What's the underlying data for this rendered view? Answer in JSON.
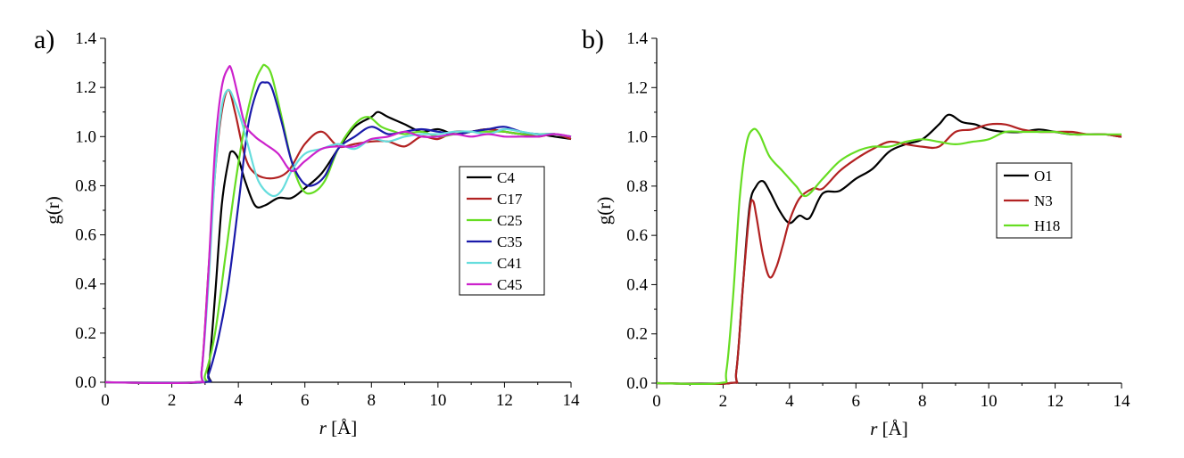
{
  "chart_data": [
    {
      "panel": "a)",
      "type": "line",
      "xlabel_italic": "r",
      "xlabel_rest": " [Å]",
      "ylabel": "g(r)",
      "xlim": [
        0,
        14
      ],
      "ylim": [
        0,
        1.4
      ],
      "xticks": [
        "0",
        "2",
        "4",
        "6",
        "8",
        "10",
        "12",
        "14"
      ],
      "yticks": [
        "0.0",
        "0.2",
        "0.4",
        "0.6",
        "0.8",
        "1.0",
        "1.2",
        "1.4"
      ],
      "grid": false,
      "legend_position": "right",
      "series": [
        {
          "name": "C4",
          "color": "#000000",
          "x": [
            0,
            2.9,
            3.1,
            3.3,
            3.5,
            3.7,
            3.8,
            4.0,
            4.2,
            4.5,
            4.8,
            5.2,
            5.6,
            6.0,
            6.5,
            7.0,
            7.5,
            8.0,
            8.2,
            8.5,
            9.0,
            9.5,
            10.0,
            10.5,
            11.0,
            11.5,
            12.0,
            12.5,
            13.0,
            13.5,
            14.0
          ],
          "y": [
            0,
            0,
            0.05,
            0.35,
            0.72,
            0.9,
            0.94,
            0.91,
            0.82,
            0.72,
            0.72,
            0.75,
            0.75,
            0.79,
            0.85,
            0.95,
            1.04,
            1.08,
            1.1,
            1.08,
            1.05,
            1.02,
            1.03,
            1.01,
            1.02,
            1.03,
            1.02,
            1.01,
            1.01,
            1.0,
            0.99
          ]
        },
        {
          "name": "C17",
          "color": "#b22222",
          "x": [
            0,
            2.7,
            2.9,
            3.1,
            3.3,
            3.5,
            3.7,
            3.9,
            4.2,
            4.5,
            5.0,
            5.5,
            6.0,
            6.5,
            7.0,
            7.5,
            8.0,
            8.5,
            9.0,
            9.5,
            10.0,
            10.5,
            11.0,
            11.5,
            12.0,
            12.5,
            13.0,
            13.5,
            14.0
          ],
          "y": [
            0,
            0,
            0.05,
            0.45,
            0.85,
            1.1,
            1.19,
            1.1,
            0.92,
            0.85,
            0.83,
            0.86,
            0.97,
            1.02,
            0.96,
            0.97,
            0.98,
            0.98,
            0.96,
            1.0,
            0.99,
            1.02,
            1.02,
            1.03,
            1.02,
            1.01,
            1.0,
            1.01,
            0.99
          ]
        },
        {
          "name": "C25",
          "color": "#66dd22",
          "x": [
            0,
            2.8,
            3.0,
            3.3,
            3.6,
            3.9,
            4.2,
            4.5,
            4.7,
            4.8,
            5.0,
            5.3,
            5.6,
            5.9,
            6.2,
            6.6,
            7.0,
            7.5,
            7.9,
            8.3,
            8.7,
            9.0,
            9.5,
            10.0,
            10.5,
            11.0,
            11.5,
            12.0,
            12.5,
            13.0,
            13.5,
            14.0
          ],
          "y": [
            0,
            0,
            0.03,
            0.2,
            0.5,
            0.8,
            1.05,
            1.22,
            1.28,
            1.29,
            1.25,
            1.08,
            0.9,
            0.79,
            0.77,
            0.82,
            0.95,
            1.05,
            1.08,
            1.04,
            1.02,
            1.01,
            1.02,
            1.0,
            1.01,
            1.02,
            1.02,
            1.02,
            1.01,
            1.01,
            1.01,
            1.0
          ]
        },
        {
          "name": "C35",
          "color": "#1a1aaa",
          "x": [
            0,
            2.9,
            3.1,
            3.4,
            3.7,
            4.0,
            4.3,
            4.6,
            4.8,
            5.0,
            5.3,
            5.6,
            5.9,
            6.2,
            6.6,
            7.0,
            7.5,
            8.0,
            8.5,
            9.0,
            9.5,
            10.0,
            10.5,
            11.0,
            11.5,
            12.0,
            12.5,
            13.0,
            13.5,
            14.0
          ],
          "y": [
            0,
            0,
            0.03,
            0.18,
            0.4,
            0.72,
            1.05,
            1.2,
            1.22,
            1.2,
            1.06,
            0.9,
            0.82,
            0.8,
            0.84,
            0.95,
            1.0,
            1.04,
            1.01,
            1.02,
            1.03,
            1.02,
            1.01,
            1.02,
            1.03,
            1.04,
            1.02,
            1.01,
            1.01,
            1.0
          ]
        },
        {
          "name": "C41",
          "color": "#66dddd",
          "x": [
            0,
            2.7,
            2.9,
            3.1,
            3.3,
            3.5,
            3.7,
            3.9,
            4.1,
            4.3,
            4.6,
            5.0,
            5.3,
            5.6,
            6.0,
            6.5,
            7.0,
            7.5,
            8.0,
            8.5,
            9.0,
            9.5,
            10.0,
            10.5,
            11.0,
            11.5,
            12.0,
            12.5,
            13.0,
            13.5,
            14.0
          ],
          "y": [
            0,
            0,
            0.05,
            0.4,
            0.85,
            1.12,
            1.19,
            1.14,
            1.06,
            0.96,
            0.82,
            0.76,
            0.78,
            0.86,
            0.93,
            0.95,
            0.97,
            0.95,
            0.99,
            0.98,
            1.0,
            1.01,
            1.01,
            1.02,
            1.02,
            1.01,
            1.03,
            1.02,
            1.01,
            1.01,
            1.0
          ]
        },
        {
          "name": "C45",
          "color": "#cc22cc",
          "x": [
            0,
            2.7,
            2.9,
            3.1,
            3.3,
            3.5,
            3.7,
            3.8,
            4.0,
            4.2,
            4.5,
            4.8,
            5.2,
            5.6,
            6.0,
            6.5,
            7.0,
            7.5,
            8.0,
            8.5,
            9.0,
            9.5,
            10.0,
            10.5,
            11.0,
            11.5,
            12.0,
            12.5,
            13.0,
            13.5,
            14.0
          ],
          "y": [
            0,
            0,
            0.05,
            0.45,
            0.95,
            1.2,
            1.28,
            1.27,
            1.16,
            1.05,
            1.0,
            0.97,
            0.93,
            0.86,
            0.9,
            0.95,
            0.96,
            0.96,
            0.99,
            1.0,
            1.02,
            1.0,
            1.0,
            1.01,
            1.0,
            1.01,
            1.0,
            1.0,
            1.0,
            1.01,
            1.0
          ]
        }
      ]
    },
    {
      "panel": "b)",
      "type": "line",
      "xlabel_italic": "r",
      "xlabel_rest": " [Å]",
      "ylabel": "g(r)",
      "xlim": [
        0,
        14
      ],
      "ylim": [
        0,
        1.4
      ],
      "xticks": [
        "0",
        "2",
        "4",
        "6",
        "8",
        "10",
        "12",
        "14"
      ],
      "yticks": [
        "0.0",
        "0.2",
        "0.4",
        "0.6",
        "0.8",
        "1.0",
        "1.2",
        "1.4"
      ],
      "grid": false,
      "legend_position": "right",
      "series": [
        {
          "name": "O1",
          "color": "#000000",
          "x": [
            0,
            2.2,
            2.4,
            2.6,
            2.8,
            3.0,
            3.2,
            3.4,
            3.7,
            4.0,
            4.3,
            4.6,
            5.0,
            5.5,
            6.0,
            6.5,
            7.0,
            7.5,
            8.0,
            8.5,
            8.8,
            9.2,
            9.6,
            10.0,
            10.5,
            11.0,
            11.5,
            12.0,
            12.5,
            13.0,
            13.5,
            14.0
          ],
          "y": [
            0,
            0,
            0.05,
            0.4,
            0.72,
            0.8,
            0.82,
            0.78,
            0.7,
            0.65,
            0.68,
            0.67,
            0.77,
            0.78,
            0.83,
            0.87,
            0.94,
            0.97,
            0.99,
            1.05,
            1.09,
            1.06,
            1.05,
            1.03,
            1.02,
            1.02,
            1.03,
            1.02,
            1.01,
            1.01,
            1.01,
            1.0
          ]
        },
        {
          "name": "N3",
          "color": "#b22222",
          "x": [
            0,
            2.2,
            2.4,
            2.6,
            2.8,
            2.9,
            3.0,
            3.2,
            3.4,
            3.6,
            3.8,
            4.0,
            4.3,
            4.7,
            5.0,
            5.5,
            6.0,
            6.5,
            7.0,
            7.5,
            8.0,
            8.5,
            9.0,
            9.5,
            10.0,
            10.5,
            11.0,
            11.5,
            12.0,
            12.5,
            13.0,
            13.5,
            14.0
          ],
          "y": [
            0,
            0,
            0.05,
            0.4,
            0.7,
            0.74,
            0.68,
            0.52,
            0.43,
            0.47,
            0.56,
            0.66,
            0.75,
            0.79,
            0.79,
            0.86,
            0.91,
            0.95,
            0.98,
            0.97,
            0.96,
            0.96,
            1.02,
            1.03,
            1.05,
            1.05,
            1.03,
            1.02,
            1.02,
            1.02,
            1.01,
            1.01,
            1.0
          ]
        },
        {
          "name": "H18",
          "color": "#66dd22",
          "x": [
            0,
            1.9,
            2.1,
            2.3,
            2.5,
            2.7,
            2.9,
            3.1,
            3.4,
            3.8,
            4.2,
            4.5,
            5.0,
            5.5,
            6.0,
            6.5,
            7.0,
            7.5,
            8.0,
            8.5,
            9.0,
            9.5,
            10.0,
            10.5,
            11.0,
            11.5,
            12.0,
            12.5,
            13.0,
            13.5,
            14.0
          ],
          "y": [
            0,
            0,
            0.05,
            0.35,
            0.75,
            0.97,
            1.03,
            1.01,
            0.92,
            0.86,
            0.8,
            0.76,
            0.83,
            0.9,
            0.94,
            0.96,
            0.96,
            0.98,
            0.99,
            0.98,
            0.97,
            0.98,
            0.99,
            1.02,
            1.02,
            1.02,
            1.02,
            1.01,
            1.01,
            1.01,
            1.01
          ]
        }
      ]
    }
  ]
}
